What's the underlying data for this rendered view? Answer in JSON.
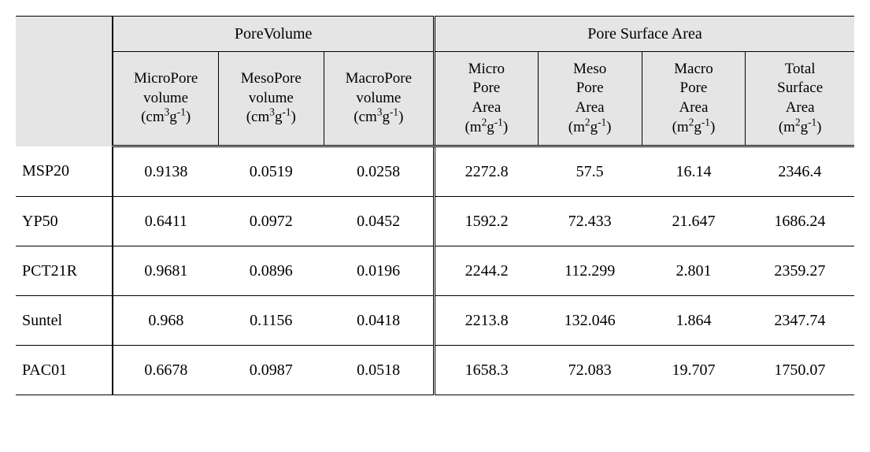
{
  "table": {
    "background_color": "#ffffff",
    "header_bg": "#e5e5e5",
    "border_color": "#000000",
    "groups": {
      "pore_volume": "PoreVolume",
      "pore_surface_area": "Pore Surface Area"
    },
    "columns": [
      {
        "key": "micro_vol",
        "lines": [
          "MicroPore",
          "volume"
        ],
        "unit_html": "(cm³g⁻¹)"
      },
      {
        "key": "meso_vol",
        "lines": [
          "MesoPore",
          "volume"
        ],
        "unit_html": "(cm³g⁻¹)"
      },
      {
        "key": "macro_vol",
        "lines": [
          "MacroPore",
          "volume"
        ],
        "unit_html": "(cm³g⁻¹)"
      },
      {
        "key": "micro_area",
        "lines": [
          "Micro",
          "Pore",
          "Area"
        ],
        "unit_html": "(m²g⁻¹)"
      },
      {
        "key": "meso_area",
        "lines": [
          "Meso",
          "Pore",
          "Area"
        ],
        "unit_html": "(m²g⁻¹)"
      },
      {
        "key": "macro_area",
        "lines": [
          "Macro",
          "Pore",
          "Area"
        ],
        "unit_html": "(m²g⁻¹)"
      },
      {
        "key": "total_area",
        "lines": [
          "Total",
          "Surface",
          "Area"
        ],
        "unit_html": "(m²g⁻¹)"
      }
    ],
    "rows": [
      {
        "label": "MSP20",
        "values": [
          "0.9138",
          "0.0519",
          "0.0258",
          "2272.8",
          "57.5",
          "16.14",
          "2346.4"
        ]
      },
      {
        "label": "YP50",
        "values": [
          "0.6411",
          "0.0972",
          "0.0452",
          "1592.2",
          "72.433",
          "21.647",
          "1686.24"
        ]
      },
      {
        "label": "PCT21R",
        "values": [
          "0.9681",
          "0.0896",
          "0.0196",
          "2244.2",
          "112.299",
          "2.801",
          "2359.27"
        ]
      },
      {
        "label": "Suntel",
        "values": [
          "0.968",
          "0.1156",
          "0.0418",
          "2213.8",
          "132.046",
          "1.864",
          "2347.74"
        ]
      },
      {
        "label": "PAC01",
        "values": [
          "0.6678",
          "0.0987",
          "0.0518",
          "1658.3",
          "72.083",
          "19.707",
          "1750.07"
        ]
      }
    ],
    "units": {
      "cm3g": {
        "open": "(cm",
        "exp1": "3",
        "mid": "g",
        "exp2": "-1",
        "close": ")"
      },
      "m2g": {
        "open": "(m",
        "exp1": "2",
        "mid": "g",
        "exp2": "-1",
        "close": ")"
      }
    },
    "font": {
      "header_group_size_pt": 15,
      "header_sub_size_pt": 14,
      "body_size_pt": 15,
      "family": "Times New Roman"
    }
  }
}
